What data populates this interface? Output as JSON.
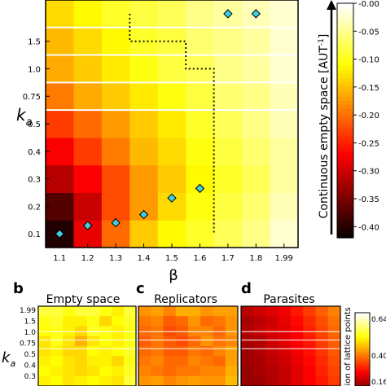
{
  "chart_data": [
    {
      "type": "heatmap",
      "xlabel": "β",
      "ylabel": "k",
      "ylabel_subscript": "a",
      "x": [
        1.1,
        1.2,
        1.3,
        1.4,
        1.5,
        1.6,
        1.7,
        1.8,
        1.99
      ],
      "y": [
        0.1,
        0.2,
        0.3,
        0.4,
        0.5,
        0.75,
        1.0,
        1.5,
        1.99
      ],
      "y_ticks_shown": [
        "0.1",
        "0.2",
        "0.3",
        "0.4",
        "0.5",
        "0.75",
        "1.0",
        "1.5"
      ],
      "x_ticks_shown": [
        "1.1",
        "1.2",
        "1.3",
        "1.4",
        "1.5",
        "1.6",
        "1.7",
        "1.8",
        "1.99"
      ],
      "values": [
        [
          -0.4,
          -0.28,
          -0.2,
          -0.14,
          -0.11,
          -0.09,
          -0.07,
          -0.05,
          -0.02
        ],
        [
          -0.37,
          -0.3,
          -0.22,
          -0.17,
          -0.13,
          -0.1,
          -0.08,
          -0.06,
          -0.03
        ],
        [
          -0.31,
          -0.27,
          -0.22,
          -0.17,
          -0.14,
          -0.11,
          -0.09,
          -0.07,
          -0.04
        ],
        [
          -0.27,
          -0.23,
          -0.19,
          -0.15,
          -0.13,
          -0.1,
          -0.08,
          -0.06,
          -0.04
        ],
        [
          -0.23,
          -0.2,
          -0.17,
          -0.14,
          -0.12,
          -0.09,
          -0.07,
          -0.05,
          -0.03
        ],
        [
          -0.19,
          -0.16,
          -0.14,
          -0.12,
          -0.1,
          -0.08,
          -0.06,
          -0.05,
          -0.03
        ],
        [
          -0.16,
          -0.14,
          -0.12,
          -0.1,
          -0.08,
          -0.07,
          -0.05,
          -0.04,
          -0.02
        ],
        [
          -0.15,
          -0.13,
          -0.11,
          -0.09,
          -0.08,
          -0.06,
          -0.05,
          -0.04,
          -0.02
        ],
        [
          -0.13,
          -0.11,
          -0.09,
          -0.08,
          -0.07,
          -0.05,
          -0.04,
          -0.03,
          -0.02
        ]
      ],
      "optimal_points": [
        {
          "beta": 1.1,
          "ka": 0.1
        },
        {
          "beta": 1.2,
          "ka": 0.13
        },
        {
          "beta": 1.3,
          "ka": 0.14
        },
        {
          "beta": 1.4,
          "ka": 0.17
        },
        {
          "beta": 1.5,
          "ka": 0.23
        },
        {
          "beta": 1.6,
          "ka": 0.265
        },
        {
          "beta": 1.7,
          "ka": 1.99
        },
        {
          "beta": 1.8,
          "ka": 1.99
        }
      ],
      "boundary_line": [
        {
          "beta": 1.35,
          "ka": 1.99
        },
        {
          "beta": 1.35,
          "ka": 1.5
        },
        {
          "beta": 1.55,
          "ka": 1.5
        },
        {
          "beta": 1.55,
          "ka": 1.0
        },
        {
          "beta": 1.65,
          "ka": 1.0
        },
        {
          "beta": 1.65,
          "ka": 0.05
        }
      ],
      "colorbar": {
        "label": "Continuous empty space [AUT",
        "label_sup": "-1",
        "label_end": "]",
        "range": [
          -0.42,
          0.0
        ],
        "ticks": [
          "-0.40",
          "-0.35",
          "-0.30",
          "-0.25",
          "-0.20",
          "-0.15",
          "-0.10",
          "-0.05",
          "-0.00"
        ],
        "colormap": "hot"
      }
    },
    {
      "type": "heatmap",
      "panel_label": "b",
      "title": "Empty space",
      "ylabel": "k",
      "ylabel_subscript": "a",
      "y_ticks": [
        "1.99",
        "1.5",
        "1.0",
        "0.75",
        "0.5",
        "0.4",
        "0.3"
      ],
      "colormap": "hot",
      "values": [
        [
          0.56,
          0.56,
          0.54,
          0.56,
          0.56,
          0.54,
          0.52,
          0.56
        ],
        [
          0.54,
          0.55,
          0.52,
          0.52,
          0.54,
          0.5,
          0.53,
          0.55
        ],
        [
          0.53,
          0.54,
          0.52,
          0.5,
          0.55,
          0.54,
          0.52,
          0.54
        ],
        [
          0.51,
          0.54,
          0.51,
          0.47,
          0.51,
          0.53,
          0.52,
          0.54
        ],
        [
          0.51,
          0.52,
          0.5,
          0.5,
          0.53,
          0.52,
          0.53,
          0.55
        ],
        [
          0.52,
          0.53,
          0.51,
          0.5,
          0.52,
          0.52,
          0.5,
          0.54
        ],
        [
          0.53,
          0.52,
          0.51,
          0.5,
          0.51,
          0.53,
          0.52,
          0.55
        ],
        [
          0.52,
          0.53,
          0.51,
          0.52,
          0.53,
          0.52,
          0.51,
          0.56
        ]
      ]
    },
    {
      "type": "heatmap",
      "panel_label": "c",
      "title": "Replicators",
      "colormap": "hot",
      "values": [
        [
          0.44,
          0.45,
          0.43,
          0.46,
          0.46,
          0.44,
          0.45,
          0.45
        ],
        [
          0.42,
          0.43,
          0.4,
          0.41,
          0.44,
          0.41,
          0.42,
          0.44
        ],
        [
          0.41,
          0.42,
          0.39,
          0.4,
          0.43,
          0.43,
          0.41,
          0.44
        ],
        [
          0.4,
          0.42,
          0.4,
          0.39,
          0.41,
          0.44,
          0.42,
          0.43
        ],
        [
          0.41,
          0.42,
          0.4,
          0.4,
          0.42,
          0.41,
          0.43,
          0.45
        ],
        [
          0.42,
          0.43,
          0.41,
          0.41,
          0.43,
          0.42,
          0.41,
          0.45
        ],
        [
          0.43,
          0.42,
          0.41,
          0.42,
          0.42,
          0.43,
          0.43,
          0.46
        ],
        [
          0.44,
          0.45,
          0.43,
          0.44,
          0.45,
          0.44,
          0.44,
          0.47
        ]
      ]
    },
    {
      "type": "heatmap",
      "panel_label": "d",
      "title": "Parasites",
      "colormap": "hot",
      "values": [
        [
          0.2,
          0.22,
          0.24,
          0.26,
          0.3,
          0.34,
          0.38,
          0.42
        ],
        [
          0.18,
          0.2,
          0.22,
          0.25,
          0.28,
          0.32,
          0.36,
          0.4
        ],
        [
          0.19,
          0.21,
          0.23,
          0.24,
          0.27,
          0.31,
          0.35,
          0.39
        ],
        [
          0.18,
          0.19,
          0.22,
          0.24,
          0.27,
          0.3,
          0.34,
          0.38
        ],
        [
          0.17,
          0.19,
          0.21,
          0.23,
          0.26,
          0.29,
          0.33,
          0.37
        ],
        [
          0.17,
          0.18,
          0.2,
          0.22,
          0.25,
          0.28,
          0.32,
          0.36
        ],
        [
          0.16,
          0.18,
          0.19,
          0.21,
          0.24,
          0.27,
          0.31,
          0.35
        ],
        [
          0.16,
          0.17,
          0.19,
          0.21,
          0.24,
          0.27,
          0.3,
          0.34
        ]
      ],
      "colorbar": {
        "label": "ction of lattice points",
        "ticks": [
          "0.640",
          "0.400",
          "0.16"
        ],
        "range": [
          0.16,
          0.64
        ]
      }
    }
  ]
}
